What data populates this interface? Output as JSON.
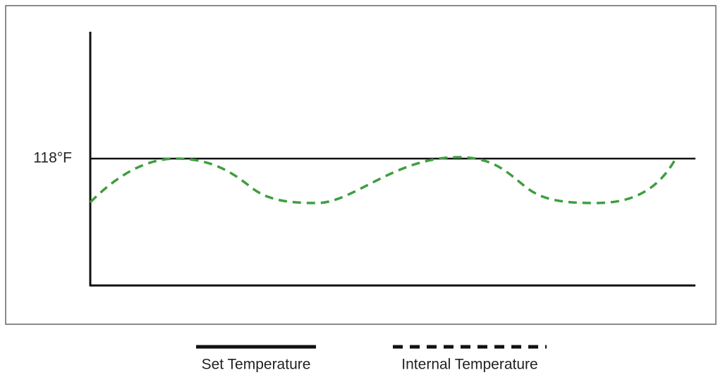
{
  "y_label": "118°F",
  "legend": [
    {
      "label": "Set Temperature"
    },
    {
      "label": "Internal Temperature"
    }
  ]
}
